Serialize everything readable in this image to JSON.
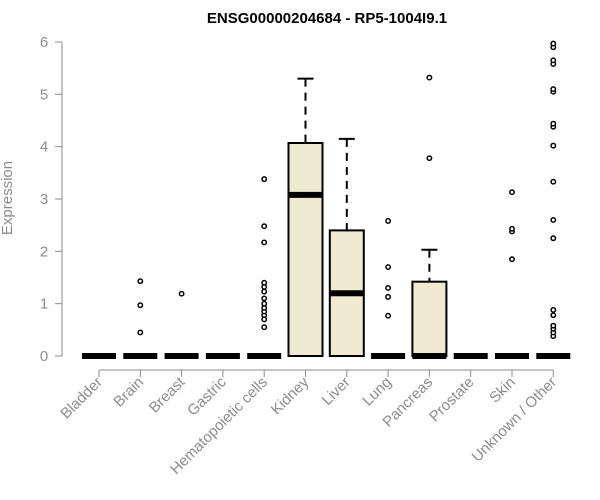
{
  "chart_data": {
    "type": "boxplot",
    "title": "ENSG00000204684 - RP5-1004I9.1",
    "xlabel": "",
    "ylabel": "Expression",
    "ylim": [
      0,
      6
    ],
    "yticks": [
      0,
      1,
      2,
      3,
      4,
      5,
      6
    ],
    "grid": false,
    "categories": [
      "Bladder",
      "Brain",
      "Breast",
      "Gastric",
      "Hematopoietic cells",
      "Kidney",
      "Liver",
      "Lung",
      "Pancreas",
      "Prostate",
      "Skin",
      "Unknown / Other"
    ],
    "boxes": [
      {
        "category": "Bladder",
        "q1": 0,
        "median": 0,
        "q3": 0,
        "whisker_low": 0,
        "whisker_high": 0,
        "outliers": []
      },
      {
        "category": "Brain",
        "q1": 0,
        "median": 0,
        "q3": 0,
        "whisker_low": 0,
        "whisker_high": 0,
        "outliers": [
          0.45,
          0.97,
          1.43
        ]
      },
      {
        "category": "Breast",
        "q1": 0,
        "median": 0,
        "q3": 0,
        "whisker_low": 0,
        "whisker_high": 0,
        "outliers": [
          1.19
        ]
      },
      {
        "category": "Gastric",
        "q1": 0,
        "median": 0,
        "q3": 0,
        "whisker_low": 0,
        "whisker_high": 0,
        "outliers": []
      },
      {
        "category": "Hematopoietic cells",
        "q1": 0,
        "median": 0,
        "q3": 0,
        "whisker_low": 0,
        "whisker_high": 0,
        "outliers": [
          0.55,
          0.7,
          0.78,
          0.85,
          0.92,
          1.0,
          1.1,
          1.23,
          1.32,
          1.4,
          2.17,
          2.48,
          3.38
        ]
      },
      {
        "category": "Kidney",
        "q1": 0,
        "median": 3.08,
        "q3": 4.07,
        "whisker_low": 0,
        "whisker_high": 5.3,
        "outliers": []
      },
      {
        "category": "Liver",
        "q1": 0,
        "median": 1.2,
        "q3": 2.4,
        "whisker_low": 0,
        "whisker_high": 4.15,
        "outliers": []
      },
      {
        "category": "Lung",
        "q1": 0,
        "median": 0,
        "q3": 0,
        "whisker_low": 0,
        "whisker_high": 0,
        "outliers": [
          0.77,
          1.13,
          1.3,
          1.7,
          2.58
        ]
      },
      {
        "category": "Pancreas",
        "q1": 0,
        "median": 0,
        "q3": 1.42,
        "whisker_low": 0,
        "whisker_high": 2.03,
        "outliers": [
          3.78,
          5.32
        ]
      },
      {
        "category": "Prostate",
        "q1": 0,
        "median": 0,
        "q3": 0,
        "whisker_low": 0,
        "whisker_high": 0,
        "outliers": []
      },
      {
        "category": "Skin",
        "q1": 0,
        "median": 0,
        "q3": 0,
        "whisker_low": 0,
        "whisker_high": 0,
        "outliers": [
          1.85,
          2.38,
          2.43,
          3.13
        ]
      },
      {
        "category": "Unknown / Other",
        "q1": 0,
        "median": 0,
        "q3": 0,
        "whisker_low": 0,
        "whisker_high": 0,
        "outliers": [
          0.38,
          0.45,
          0.52,
          0.58,
          0.78,
          0.88,
          2.25,
          2.6,
          3.33,
          4.02,
          4.38,
          4.44,
          5.05,
          5.1,
          5.58,
          5.65,
          5.9,
          5.97
        ]
      }
    ]
  },
  "colors": {
    "box_fill": "#efe9d0",
    "box_stroke": "#000000",
    "median": "#000000",
    "axis": "#8c8c8c",
    "text_axis": "#8c8c8c",
    "title": "#000000",
    "outlier": "#000000"
  }
}
